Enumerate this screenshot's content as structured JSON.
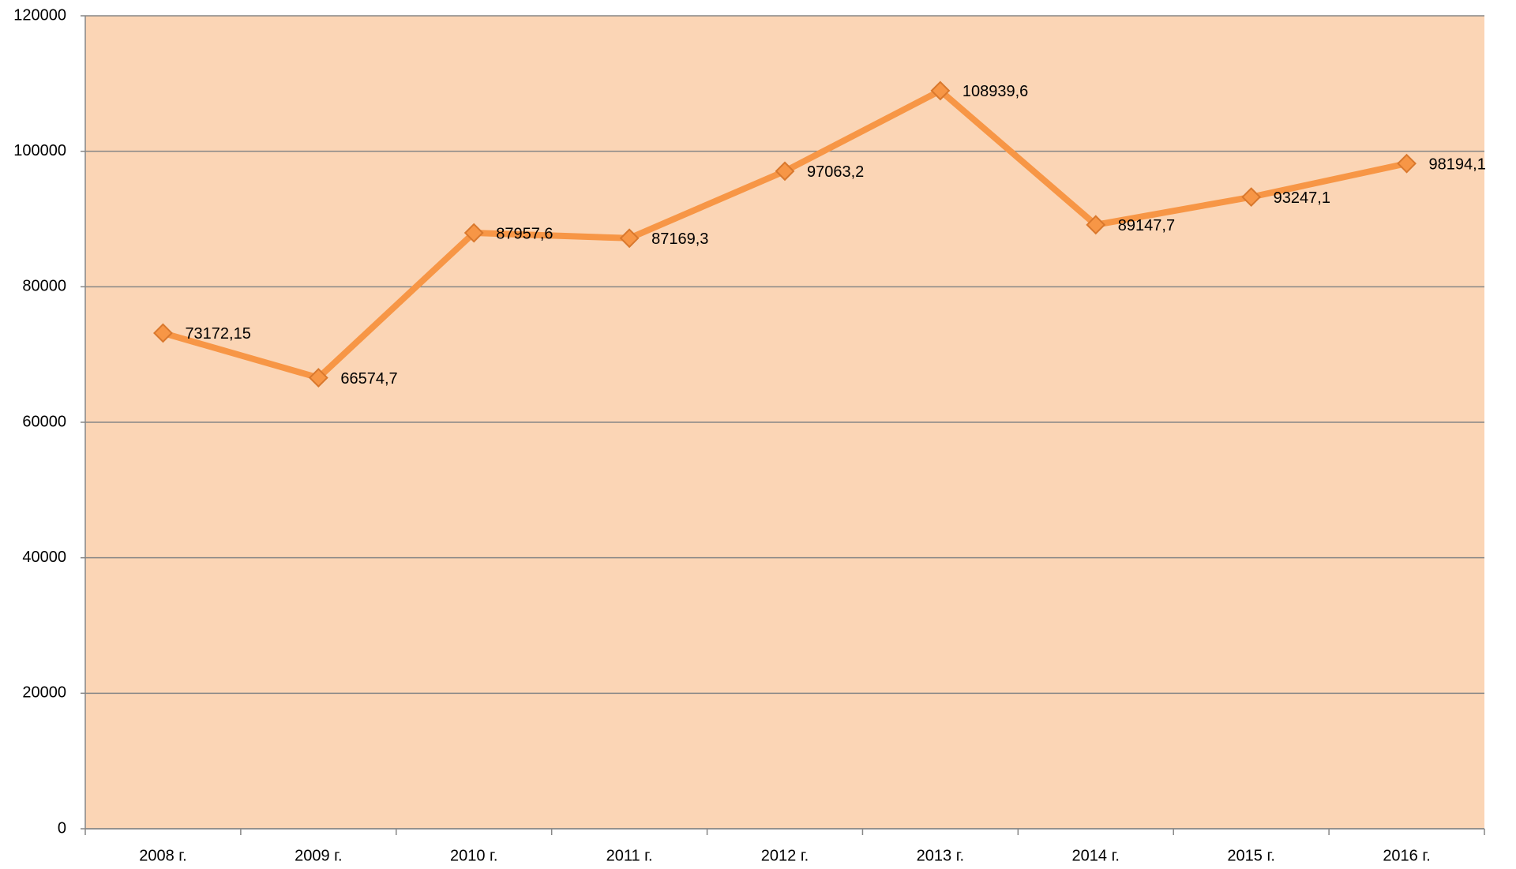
{
  "chart_data": {
    "type": "line",
    "categories": [
      "2008 г.",
      "2009 г.",
      "2010 г.",
      "2011 г.",
      "2012 г.",
      "2013 г.",
      "2014 г.",
      "2015 г.",
      "2016 г."
    ],
    "series": [
      {
        "color": "#f79646",
        "values": [
          73172.15,
          66574.7,
          87957.6,
          87169.3,
          97063.2,
          108939.6,
          89147.7,
          93247.1,
          98194.1
        ],
        "value_labels": [
          "73172,15",
          "66574,7",
          "87957,6",
          "87169,3",
          "97063,2",
          "108939,6",
          "89147,7",
          "93247,1",
          "98194,1"
        ]
      }
    ],
    "ylim": [
      0,
      120000
    ],
    "yticks": [
      0,
      20000,
      40000,
      60000,
      80000,
      100000,
      120000
    ],
    "grid": true,
    "plot_background": "#fbd5b5"
  }
}
